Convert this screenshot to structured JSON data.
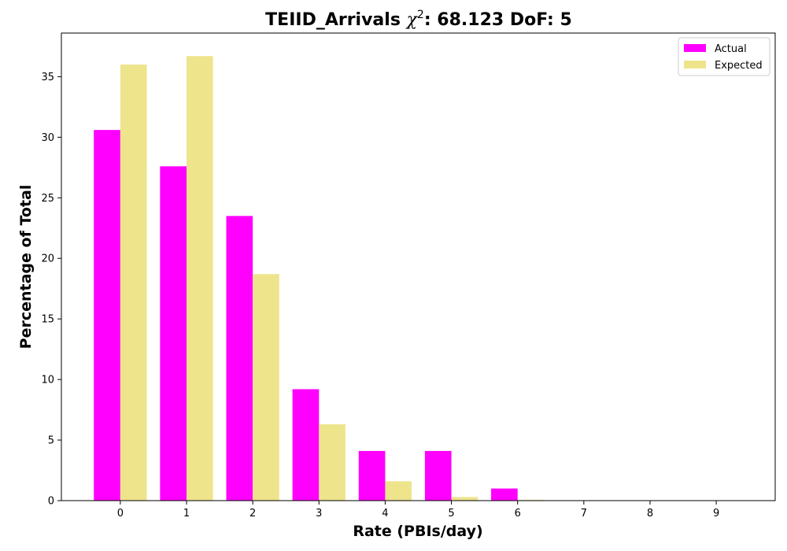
{
  "chart_data": {
    "type": "bar",
    "title_prefix": "TEIID_Arrivals ",
    "title_chi": "χ",
    "title_sup": "2",
    "title_suffix": ": 68.123 DoF: 5",
    "xlabel": "Rate (PBIs/day)",
    "ylabel": "Percentage of Total",
    "categories": [
      "0",
      "1",
      "2",
      "3",
      "4",
      "5",
      "6",
      "7",
      "8",
      "9"
    ],
    "series": [
      {
        "name": "Actual",
        "color": "#ff00ff",
        "values": [
          30.6,
          27.6,
          23.5,
          9.2,
          4.1,
          4.1,
          1.0,
          0,
          0,
          0
        ]
      },
      {
        "name": "Expected",
        "color": "#eee48c",
        "values": [
          36.0,
          36.7,
          18.7,
          6.3,
          1.6,
          0.3,
          0.06,
          0,
          0,
          0
        ]
      }
    ],
    "yticks": [
      0,
      5,
      10,
      15,
      20,
      25,
      30,
      35
    ],
    "ylim": [
      0,
      38.6
    ],
    "xlim": [
      -0.89,
      9.89
    ],
    "grid": false,
    "legend_position": "top-right"
  }
}
